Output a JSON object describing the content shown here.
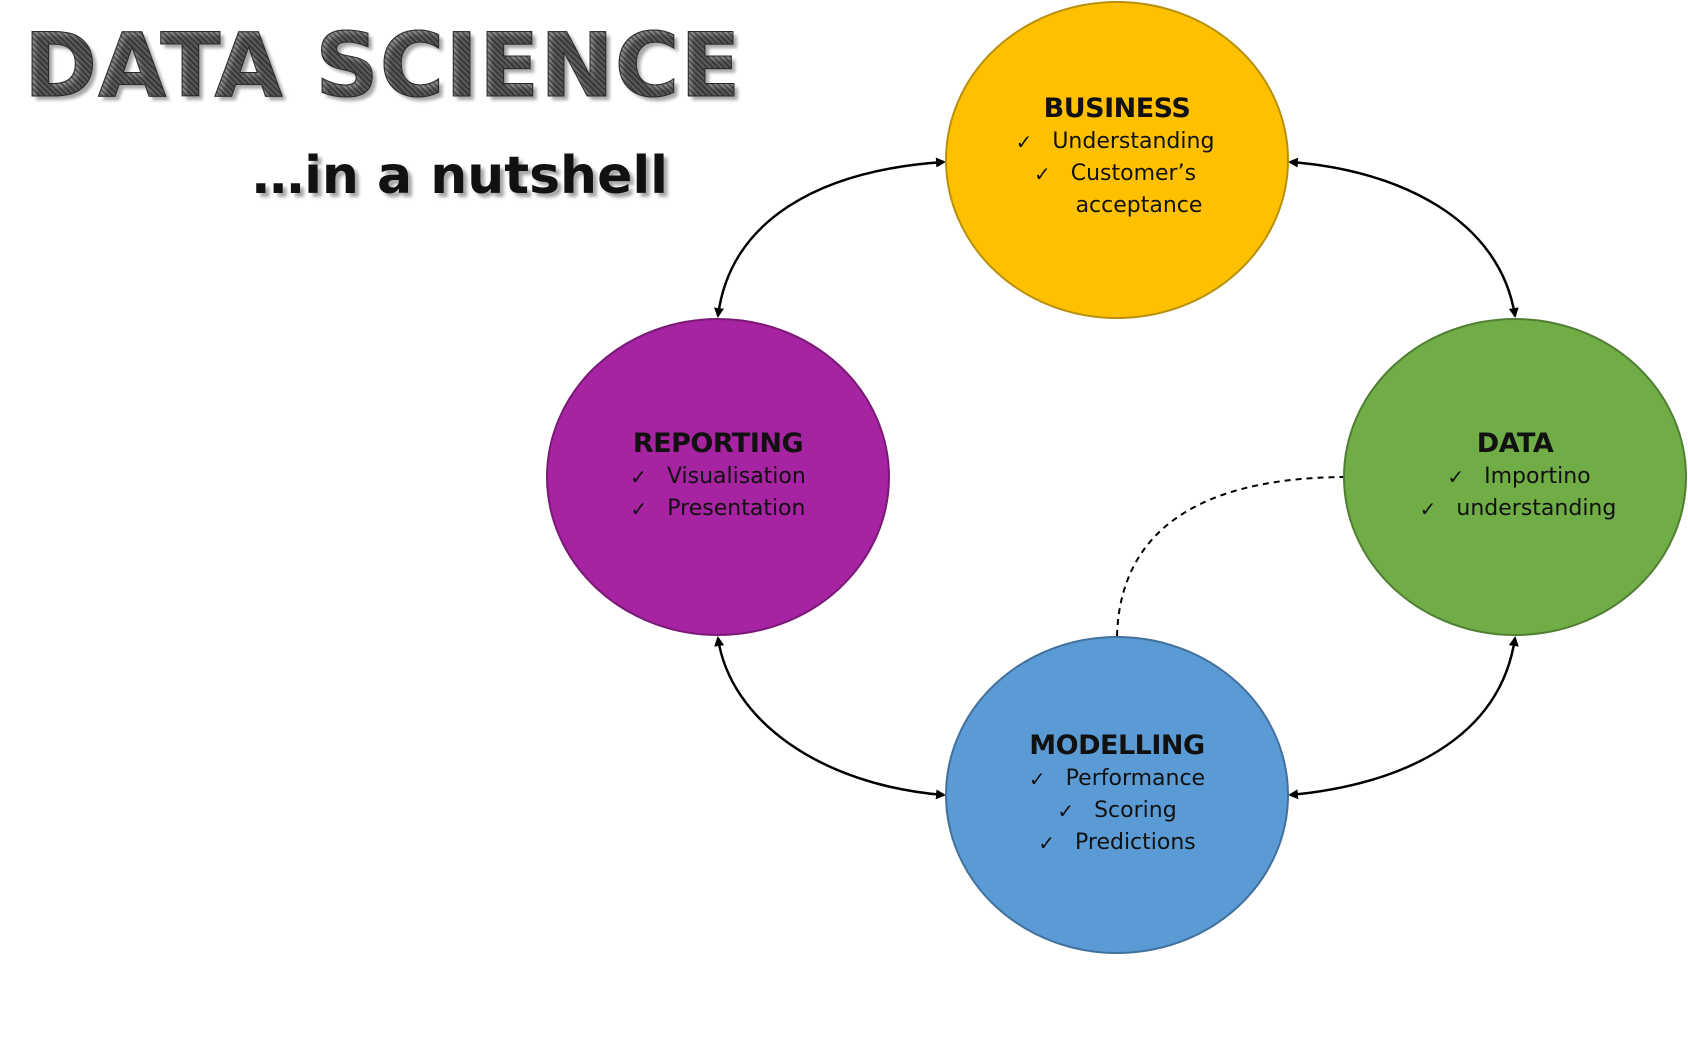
{
  "header": {
    "title": "DATA SCIENCE",
    "subtitle": "…in a nutshell"
  },
  "nodes": {
    "business": {
      "title": "BUSINESS",
      "color": "#ffc000",
      "items": [
        "Understanding",
        "Customer’s",
        "acceptance"
      ]
    },
    "data": {
      "title": "DATA",
      "color": "#70ad47",
      "items": [
        "Importino",
        "understanding"
      ]
    },
    "modelling": {
      "title": "MODELLING",
      "color": "#5b9bd5",
      "items": [
        "Performance",
        "Scoring",
        "Predictions"
      ]
    },
    "reporting": {
      "title": "REPORTING",
      "color": "#a623a1",
      "items": [
        "Visualisation",
        "Presentation"
      ]
    }
  },
  "check_icon": "checkmark-icon"
}
